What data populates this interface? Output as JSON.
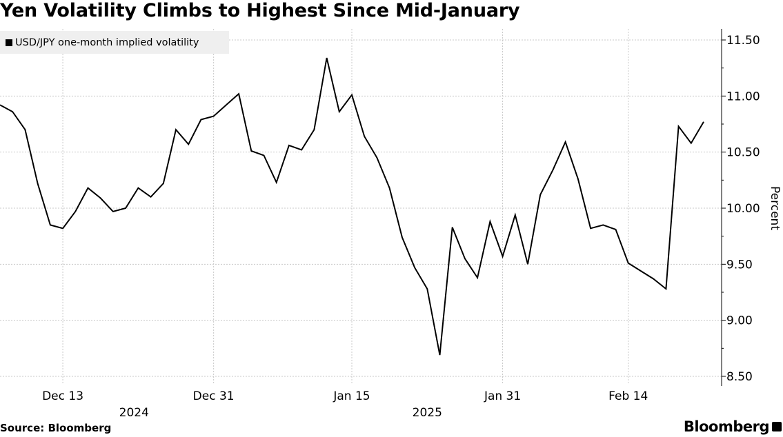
{
  "title": "Yen Volatility Climbs to Highest Since Mid-January",
  "footer": {
    "source": "Source: Bloomberg",
    "brand": "Bloomberg"
  },
  "chart_data": {
    "type": "line",
    "title": "Yen Volatility Climbs to Highest Since Mid-January",
    "ylabel": "Percent",
    "xlabel": "",
    "ylim": [
      8.5,
      11.5
    ],
    "y_ticks": [
      "8.50",
      "9.00",
      "9.50",
      "10.00",
      "10.50",
      "11.00",
      "11.50"
    ],
    "y_axis_position": "right",
    "x_ticks": [
      {
        "date": "2024-12-13",
        "label": "Dec 13"
      },
      {
        "date": "2024-12-31",
        "label": "Dec 31"
      },
      {
        "date": "2025-01-15",
        "label": "Jan 15"
      },
      {
        "date": "2025-01-31",
        "label": "Jan 31"
      },
      {
        "date": "2025-02-14",
        "label": "Feb 14"
      }
    ],
    "year_labels": [
      {
        "date": "2024-12-22",
        "label": "2024"
      },
      {
        "date": "2025-01-23",
        "label": "2025"
      }
    ],
    "grid": true,
    "legend_position": "top-left",
    "series": [
      {
        "name": "USD/JPY one-month implied volatility",
        "color": "#000000",
        "x": [
          "2024-12-06",
          "2024-12-09",
          "2024-12-10",
          "2024-12-11",
          "2024-12-12",
          "2024-12-13",
          "2024-12-16",
          "2024-12-17",
          "2024-12-18",
          "2024-12-19",
          "2024-12-20",
          "2024-12-23",
          "2024-12-24",
          "2024-12-25",
          "2024-12-26",
          "2024-12-27",
          "2024-12-30",
          "2024-12-31",
          "2025-01-01",
          "2025-01-02",
          "2025-01-03",
          "2025-01-06",
          "2025-01-07",
          "2025-01-08",
          "2025-01-09",
          "2025-01-10",
          "2025-01-13",
          "2025-01-14",
          "2025-01-15",
          "2025-01-16",
          "2025-01-17",
          "2025-01-20",
          "2025-01-21",
          "2025-01-22",
          "2025-01-23",
          "2025-01-24",
          "2025-01-27",
          "2025-01-28",
          "2025-01-29",
          "2025-01-30",
          "2025-01-31",
          "2025-02-03",
          "2025-02-04",
          "2025-02-05",
          "2025-02-06",
          "2025-02-07",
          "2025-02-10",
          "2025-02-11",
          "2025-02-12",
          "2025-02-13",
          "2025-02-14",
          "2025-02-17",
          "2025-02-18",
          "2025-02-19",
          "2025-02-20",
          "2025-02-21",
          "2025-02-24"
        ],
        "values": [
          10.92,
          10.86,
          10.7,
          10.22,
          9.85,
          9.82,
          9.97,
          10.18,
          10.09,
          9.97,
          10.0,
          10.18,
          10.1,
          10.22,
          10.7,
          10.57,
          10.79,
          10.82,
          10.92,
          11.02,
          10.51,
          10.47,
          10.23,
          10.56,
          10.52,
          10.7,
          11.34,
          10.86,
          11.01,
          10.64,
          10.45,
          10.18,
          9.74,
          9.47,
          9.28,
          8.69,
          9.83,
          9.55,
          9.38,
          9.88,
          9.57,
          9.94,
          9.5,
          10.12,
          10.34,
          10.59,
          10.26,
          9.82,
          9.85,
          9.81,
          9.51,
          9.44,
          9.37,
          9.28,
          10.73,
          10.58,
          10.77
        ]
      }
    ]
  }
}
